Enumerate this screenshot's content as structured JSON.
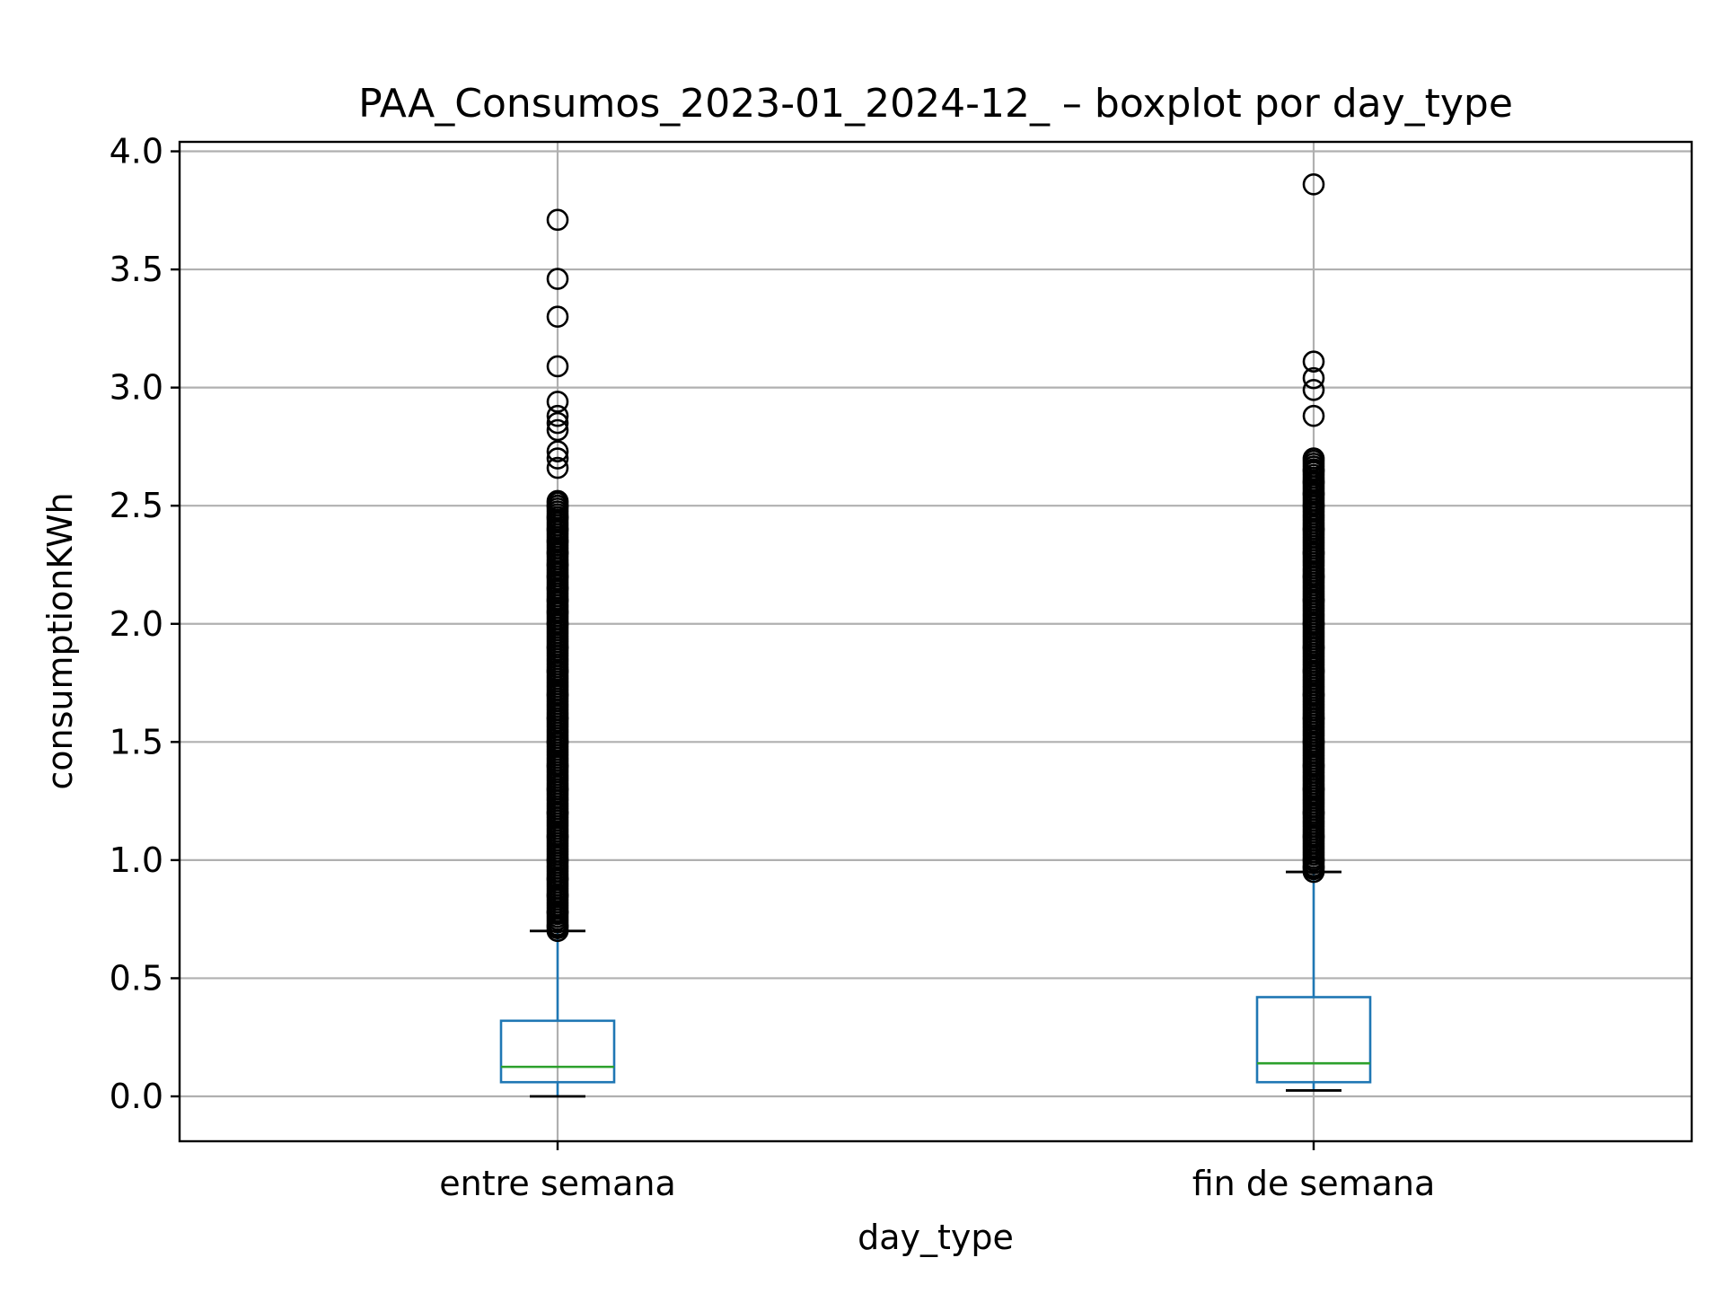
{
  "chart_data": {
    "type": "boxplot",
    "title": "PAA_Consumos_2023-01_2024-12_ – boxplot por day_type",
    "xlabel": "day_type",
    "ylabel": "consumptionKWh",
    "categories": [
      "entre semana",
      "fin de semana"
    ],
    "ylim": [
      -0.19,
      4.04
    ],
    "yticks": [
      0.0,
      0.5,
      1.0,
      1.5,
      2.0,
      2.5,
      3.0,
      3.5,
      4.0
    ],
    "ytick_labels": [
      "0.0",
      "0.5",
      "1.0",
      "1.5",
      "2.0",
      "2.5",
      "3.0",
      "3.5",
      "4.0"
    ],
    "grid": true,
    "box_color": "#1f77b4",
    "median_color": "#2ca02c",
    "series": [
      {
        "category": "entre semana",
        "whisker_low": 0.0,
        "q1": 0.06,
        "median": 0.125,
        "q3": 0.32,
        "whisker_high": 0.7,
        "outlier_dense_range": [
          0.7,
          2.52
        ],
        "outliers": [
          0.72,
          0.78,
          0.85,
          0.92,
          1.0,
          1.1,
          1.2,
          1.3,
          1.4,
          1.5,
          1.6,
          1.7,
          1.8,
          1.9,
          2.0,
          2.05,
          2.1,
          2.15,
          2.2,
          2.25,
          2.3,
          2.35,
          2.4,
          2.45,
          2.5,
          2.52,
          2.66,
          2.7,
          2.73,
          2.82,
          2.85,
          2.88,
          2.94,
          3.09,
          3.3,
          3.46,
          3.71
        ]
      },
      {
        "category": "fin de semana",
        "whisker_low": 0.025,
        "q1": 0.06,
        "median": 0.14,
        "q3": 0.42,
        "whisker_high": 0.95,
        "outlier_dense_range": [
          0.95,
          2.7
        ],
        "outliers": [
          0.97,
          1.0,
          1.1,
          1.2,
          1.3,
          1.4,
          1.5,
          1.6,
          1.7,
          1.8,
          1.9,
          2.0,
          2.1,
          2.2,
          2.3,
          2.4,
          2.5,
          2.55,
          2.6,
          2.65,
          2.7,
          2.88,
          2.99,
          3.04,
          3.11,
          3.86
        ]
      }
    ]
  }
}
